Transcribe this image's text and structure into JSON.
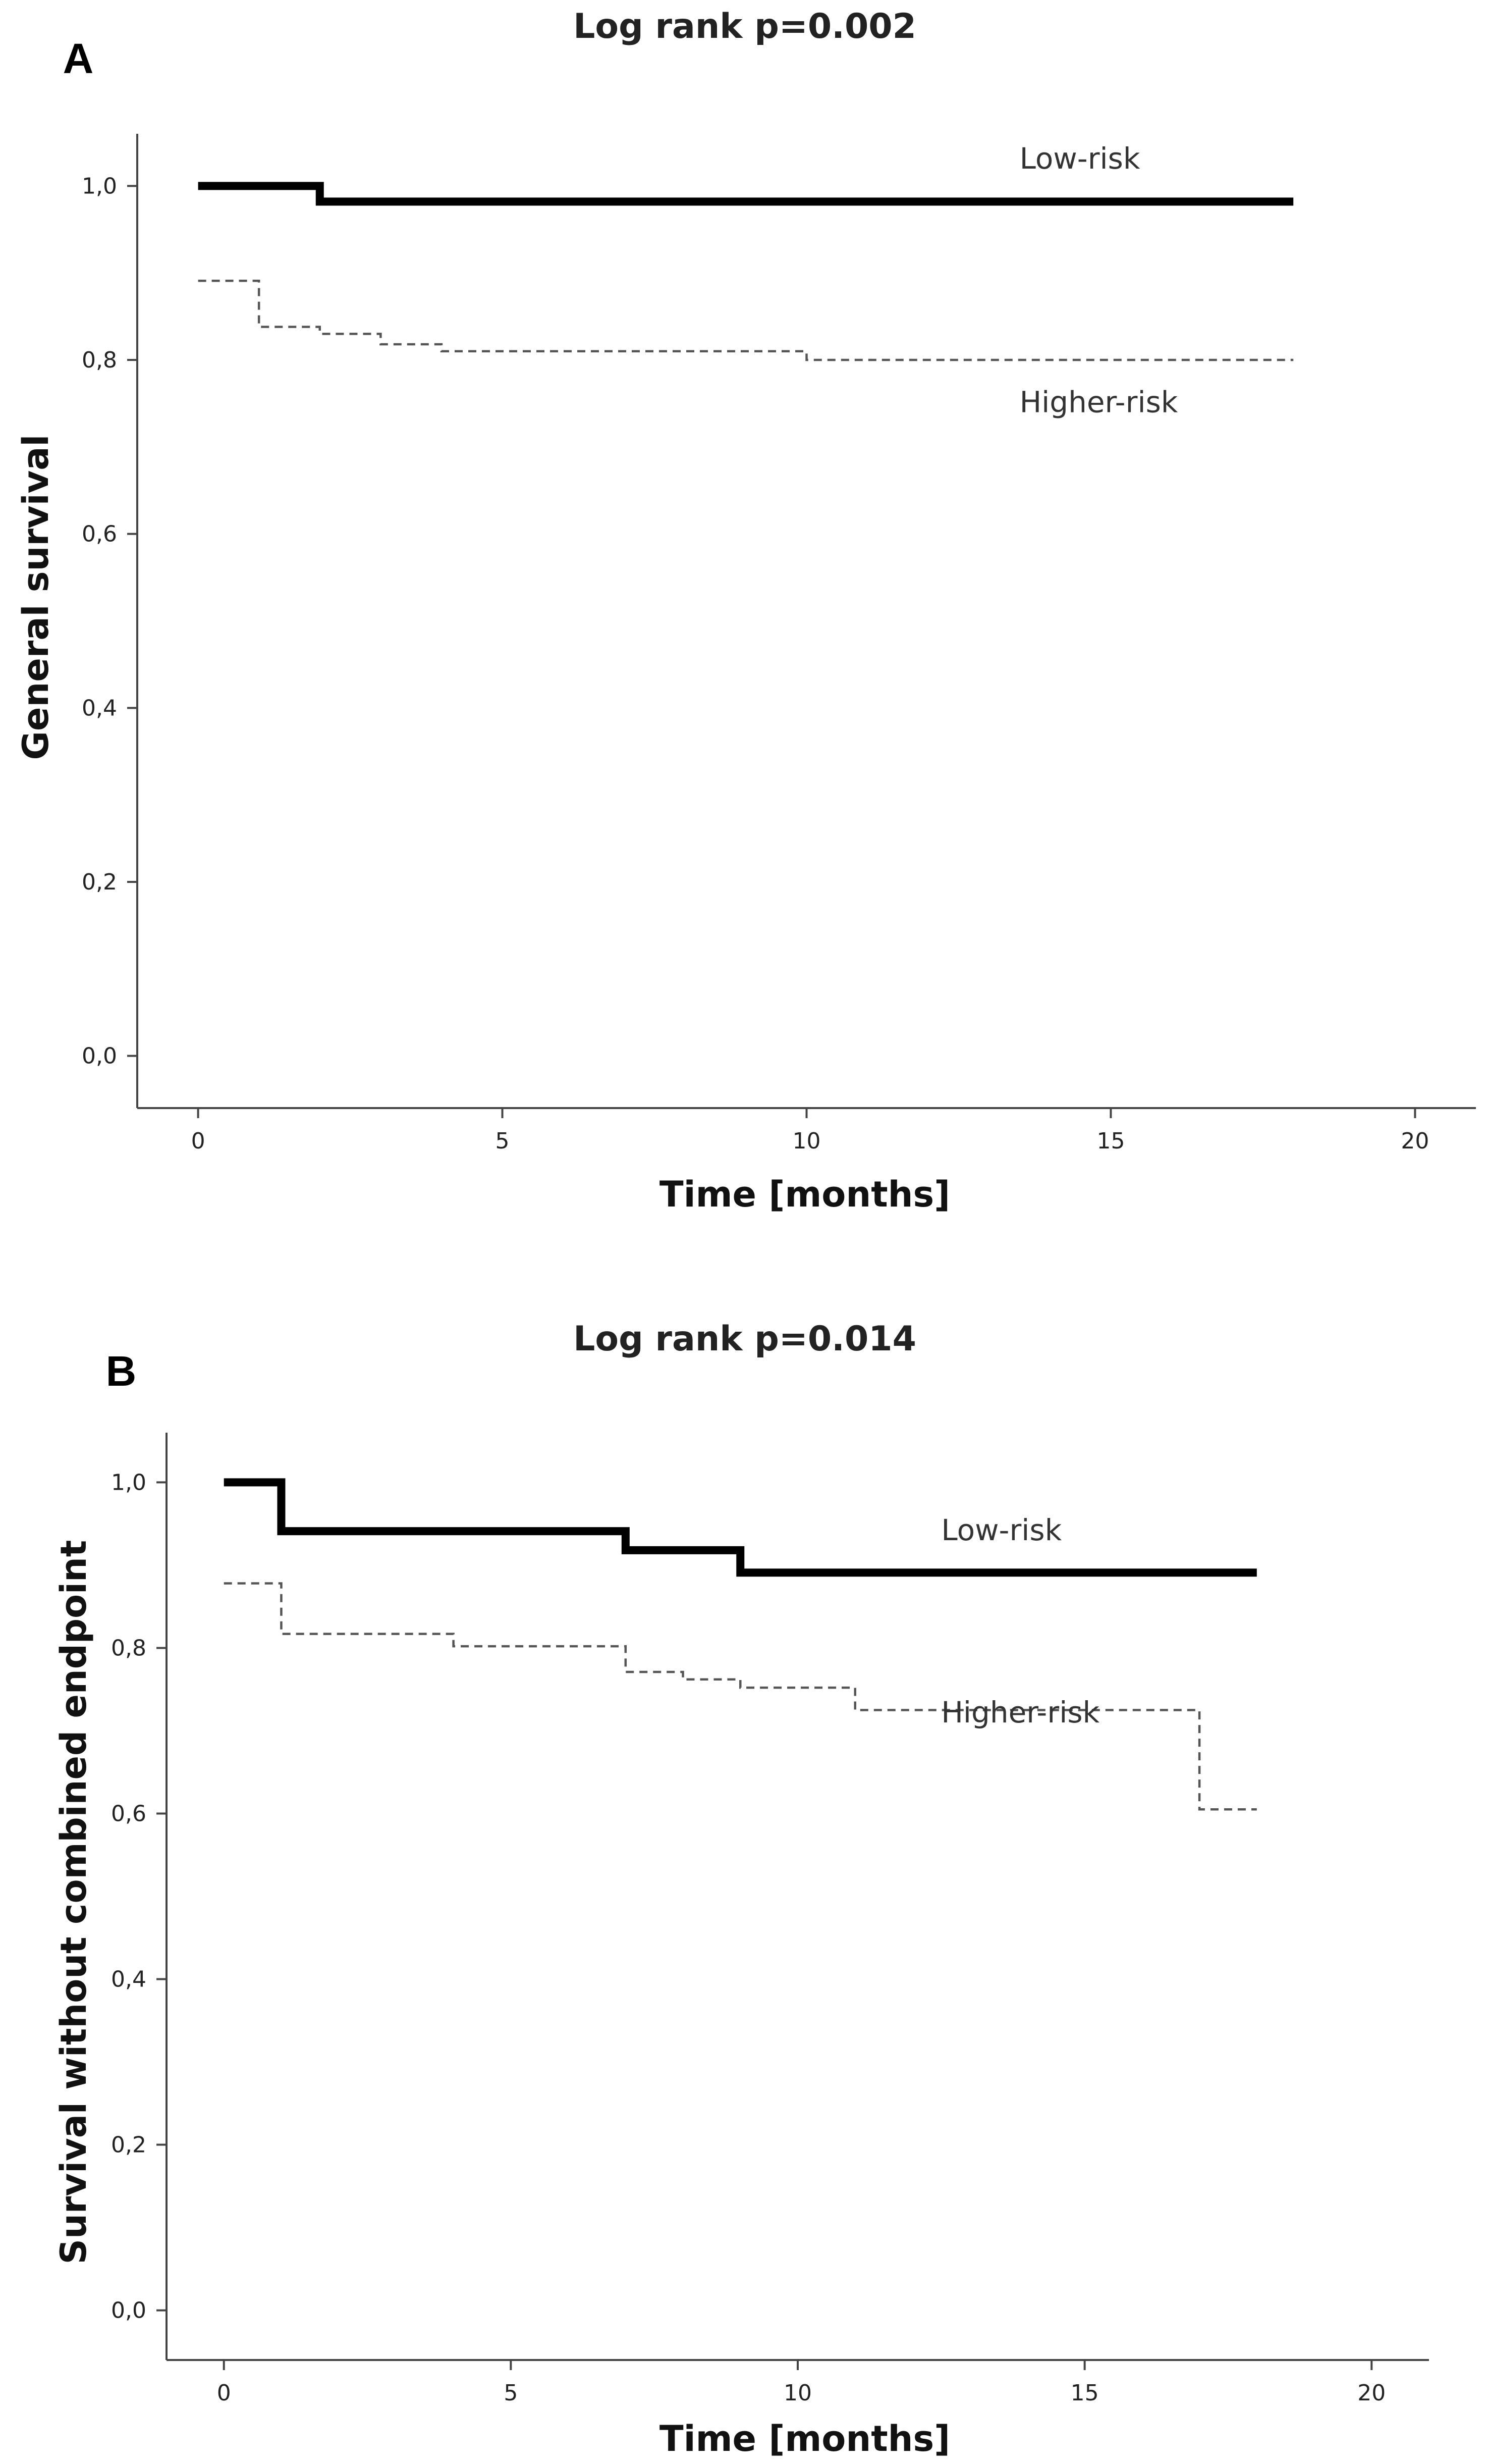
{
  "chart_data": [
    {
      "panel": "A",
      "type": "line",
      "title": "Log rank p=0.002",
      "xlabel": "Time [months]",
      "ylabel": "General survival",
      "xlim": [
        -1,
        21
      ],
      "ylim": [
        -0.06,
        1.06
      ],
      "xticks": [
        0,
        5,
        10,
        15,
        20
      ],
      "yticks": [
        0.0,
        0.2,
        0.4,
        0.6,
        0.8,
        1.0
      ],
      "yticklabels": [
        "0,0",
        "0,2",
        "0,4",
        "0,6",
        "0,8",
        "1,0"
      ],
      "grid": false,
      "series": [
        {
          "name": "Low-risk",
          "style": "solid",
          "label_at": [
            13.5,
            1.02
          ],
          "x": [
            0,
            2,
            18
          ],
          "y": [
            1.0,
            0.982,
            0.982
          ]
        },
        {
          "name": "Higher-risk",
          "style": "dashed",
          "label_at": [
            13.5,
            0.74
          ],
          "x": [
            0,
            1,
            2,
            3,
            4,
            10,
            18
          ],
          "y": [
            0.891,
            0.838,
            0.83,
            0.818,
            0.81,
            0.8,
            0.8
          ]
        }
      ]
    },
    {
      "panel": "B",
      "type": "line",
      "title": "Log rank p=0.014",
      "xlabel": "Time [months]",
      "ylabel": "Survival without combined endpoint",
      "xlim": [
        -1,
        21
      ],
      "ylim": [
        -0.06,
        1.06
      ],
      "xticks": [
        0,
        5,
        10,
        15,
        20
      ],
      "yticks": [
        0.0,
        0.2,
        0.4,
        0.6,
        0.8,
        1.0
      ],
      "yticklabels": [
        "0,0",
        "0,2",
        "0,4",
        "0,6",
        "0,8",
        "1,0"
      ],
      "grid": false,
      "series": [
        {
          "name": "Low-risk",
          "style": "solid",
          "label_at": [
            12.5,
            0.93
          ],
          "x": [
            0,
            1,
            7,
            9,
            18
          ],
          "y": [
            1.0,
            0.941,
            0.918,
            0.891,
            0.891
          ]
        },
        {
          "name": "Higher-risk",
          "style": "dashed",
          "label_at": [
            12.5,
            0.71
          ],
          "x": [
            0,
            1,
            4,
            7,
            8,
            9,
            11,
            17,
            18
          ],
          "y": [
            0.878,
            0.817,
            0.802,
            0.771,
            0.762,
            0.752,
            0.725,
            0.605,
            0.605
          ]
        }
      ]
    }
  ]
}
